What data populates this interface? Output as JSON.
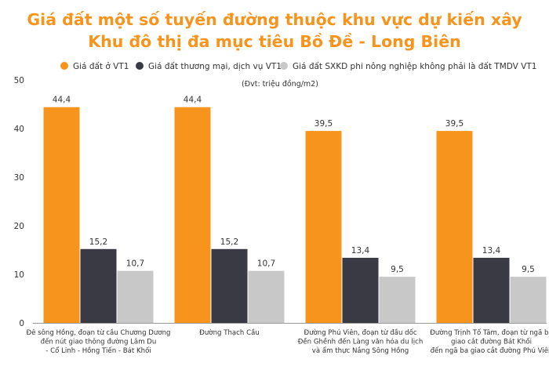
{
  "chart_data": {
    "type": "bar",
    "title_lines": [
      "Giá đất một số tuyến đường thuộc khu vực dự kiến xây",
      "Khu đô thị đa mục tiêu Bồ Đề - Long Biên"
    ],
    "unit_note": "(Đvt: triệu đồng/m2)",
    "categories": [
      [
        "Đê sông Hồng, đoạn từ cầu Chương Dương",
        "đến nút giao thông đường Lâm Du",
        "- Cổ Linh - Hồng Tiến - Bát Khối"
      ],
      [
        "Đường Thạch Cầu"
      ],
      [
        "Đường Phú Viên, đoạn từ đầu dốc",
        "Đền Ghềnh đến Làng văn hóa du lịch",
        "và ẩm thực Nắng Sông Hồng"
      ],
      [
        "Đường Trịnh Tố Tâm, đoạn từ ngã ba",
        "giao cắt đường Bát Khối",
        "đến ngã ba giao cắt đường Phú Viên"
      ]
    ],
    "series": [
      {
        "name": "Giá đất ở VT1",
        "color": "#f7941d",
        "values": [
          44.4,
          44.4,
          39.5,
          39.5
        ],
        "labels": [
          "44,4",
          "44,4",
          "39,5",
          "39,5"
        ]
      },
      {
        "name": "Giá đất thương mại, dịch vụ VT1",
        "color": "#3a3a44",
        "values": [
          15.2,
          15.2,
          13.4,
          13.4
        ],
        "labels": [
          "15,2",
          "15,2",
          "13,4",
          "13,4"
        ]
      },
      {
        "name": "Giá đất SXKD phi nông nghiệp không phải là đất TMDV VT1",
        "color": "#c8c8c8",
        "values": [
          10.7,
          10.7,
          9.5,
          9.5
        ],
        "labels": [
          "10,7",
          "10,7",
          "9,5",
          "9,5"
        ]
      }
    ],
    "ylim": [
      0,
      50
    ],
    "yticks": [
      0,
      10,
      20,
      30,
      40,
      50
    ],
    "grid": false,
    "legend_position": "top"
  }
}
